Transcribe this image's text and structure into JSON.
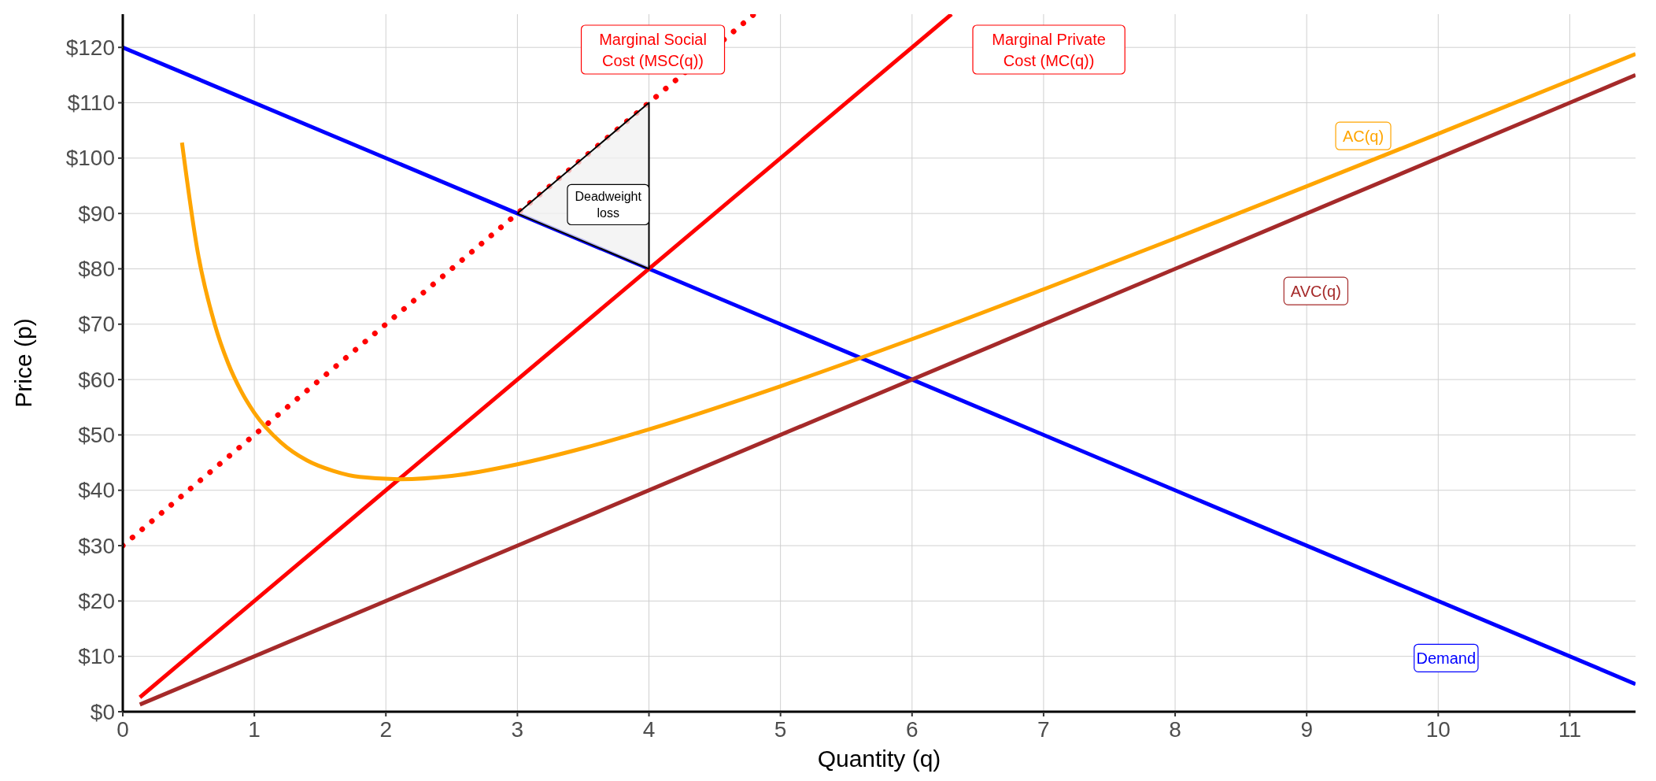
{
  "chart_data": {
    "type": "line",
    "xlabel": "Quantity (q)",
    "ylabel": "Price (p)",
    "xlim": [
      0,
      11.5
    ],
    "ylim": [
      0,
      126
    ],
    "xticks": [
      0,
      1,
      2,
      3,
      4,
      5,
      6,
      7,
      8,
      9,
      10,
      11
    ],
    "yticks": [
      {
        "value": 0,
        "label": "$0"
      },
      {
        "value": 10,
        "label": "$10"
      },
      {
        "value": 20,
        "label": "$20"
      },
      {
        "value": 30,
        "label": "$30"
      },
      {
        "value": 40,
        "label": "$40"
      },
      {
        "value": 50,
        "label": "$50"
      },
      {
        "value": 60,
        "label": "$60"
      },
      {
        "value": 70,
        "label": "$70"
      },
      {
        "value": 80,
        "label": "$80"
      },
      {
        "value": 90,
        "label": "$90"
      },
      {
        "value": 100,
        "label": "$100"
      },
      {
        "value": 110,
        "label": "$110"
      },
      {
        "value": 120,
        "label": "$120"
      }
    ],
    "grid": true,
    "series": [
      {
        "type": "area",
        "color": "#f0f0f0",
        "x": [
          3,
          4,
          4
        ],
        "values": [
          90,
          110,
          80
        ]
      },
      {
        "name": "Demand",
        "color": "#0000ff",
        "x": [
          0,
          11.5
        ],
        "values": [
          120,
          5
        ]
      },
      {
        "name": "Marginal Private Cost (MC(q))",
        "color": "#ff0000",
        "x": [
          0.13,
          6.3
        ],
        "values": [
          2.6,
          126
        ]
      },
      {
        "name": "Marginal Social Cost (MSC(q))",
        "color": "#ff0000",
        "line_style": "dotted",
        "x": [
          0,
          4.8
        ],
        "values": [
          30,
          126
        ]
      },
      {
        "name": "AVC(q)",
        "color": "#a52a2a",
        "x": [
          0.13,
          11.5
        ],
        "values": [
          1.3,
          115
        ]
      },
      {
        "name": "AC(q)",
        "color": "#ffa500",
        "x": [
          0.45,
          0.57,
          0.7,
          0.8,
          0.9,
          1,
          1.2,
          1.4,
          1.6,
          1.8,
          2.1,
          2.5,
          3,
          3.5,
          4,
          5,
          6,
          7,
          8,
          9,
          10,
          11.5
        ],
        "values": [
          102.8,
          83,
          69.9,
          63,
          57.9,
          54,
          48.7,
          45.4,
          43.5,
          42.4,
          42,
          42.6,
          44.7,
          47.6,
          51,
          58.8,
          67.3,
          76.3,
          85.5,
          94.9,
          104.4,
          118.8
        ]
      }
    ],
    "annotations": [
      "Deadweight loss"
    ]
  }
}
